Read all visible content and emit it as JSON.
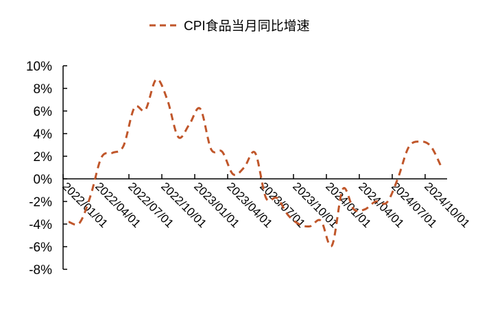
{
  "chart_data": {
    "type": "line",
    "title": "",
    "legend": {
      "position": "top",
      "entries": [
        "CPI食品当月同比增速"
      ]
    },
    "series": [
      {
        "name": "CPI食品当月同比增速",
        "color": "#C0562A",
        "style": "dashed",
        "values": [
          -3.8,
          -3.9,
          -1.5,
          1.9,
          2.3,
          2.9,
          6.3,
          6.1,
          8.8,
          7.0,
          3.7,
          4.8,
          6.2,
          2.6,
          2.4,
          0.4,
          1.0,
          2.3,
          -1.7,
          -1.7,
          -3.2,
          -4.0,
          -4.2,
          -3.7,
          -5.9,
          -0.9,
          -2.7,
          -2.7,
          -2.0,
          -2.1,
          0.0,
          2.8,
          3.3,
          2.9,
          1.0
        ]
      }
    ],
    "x_start": "2022/01",
    "x_tick_labels": [
      "2022/01/01",
      "2022/04/01",
      "2022/07/01",
      "2022/10/01",
      "2023/01/01",
      "2023/04/01",
      "2023/07/01",
      "2023/10/01",
      "2024/01/01",
      "2024/04/01",
      "2024/07/01",
      "2024/10/01"
    ],
    "y_tick_labels": [
      "10%",
      "8%",
      "6%",
      "4%",
      "2%",
      "0%",
      "-2%",
      "-4%",
      "-6%",
      "-8%"
    ],
    "ylim": [
      -8,
      10
    ],
    "xlabel": "",
    "ylabel": "",
    "grid": false
  }
}
